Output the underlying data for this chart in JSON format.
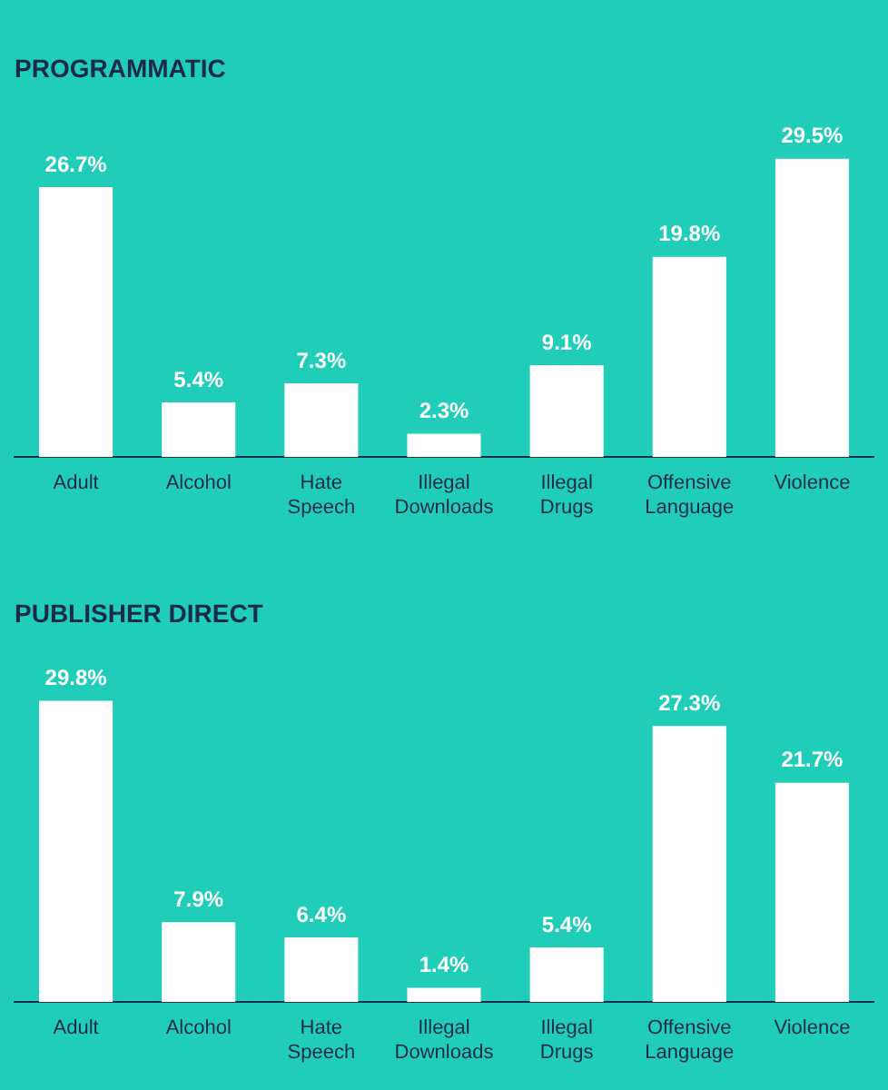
{
  "chart_data": [
    {
      "type": "bar",
      "title": "PROGRAMMATIC",
      "categories": [
        "Adult",
        "Alcohol",
        "Hate Speech",
        "Illegal Downloads",
        "Illegal Drugs",
        "Offensive Language",
        "Violence"
      ],
      "values": [
        26.7,
        5.4,
        7.3,
        2.3,
        9.1,
        19.8,
        29.5
      ],
      "color": "#ffffff",
      "value_labels": [
        "26.7%",
        "5.4%",
        "7.3%",
        "2.3%",
        "9.1%",
        "19.8%",
        "29.5%"
      ],
      "grid": false
    },
    {
      "type": "bar",
      "title": "PUBLISHER DIRECT",
      "categories": [
        "Adult",
        "Alcohol",
        "Hate Speech",
        "Illegal Downloads",
        "Illegal Drugs",
        "Offensive Language",
        "Violence"
      ],
      "values": [
        29.8,
        7.9,
        6.4,
        1.4,
        5.4,
        27.3,
        21.7
      ],
      "color": "#ffffff",
      "value_labels": [
        "29.8%",
        "7.9%",
        "6.4%",
        "1.4%",
        "5.4%",
        "27.3%",
        "21.7%"
      ],
      "grid": false
    }
  ]
}
